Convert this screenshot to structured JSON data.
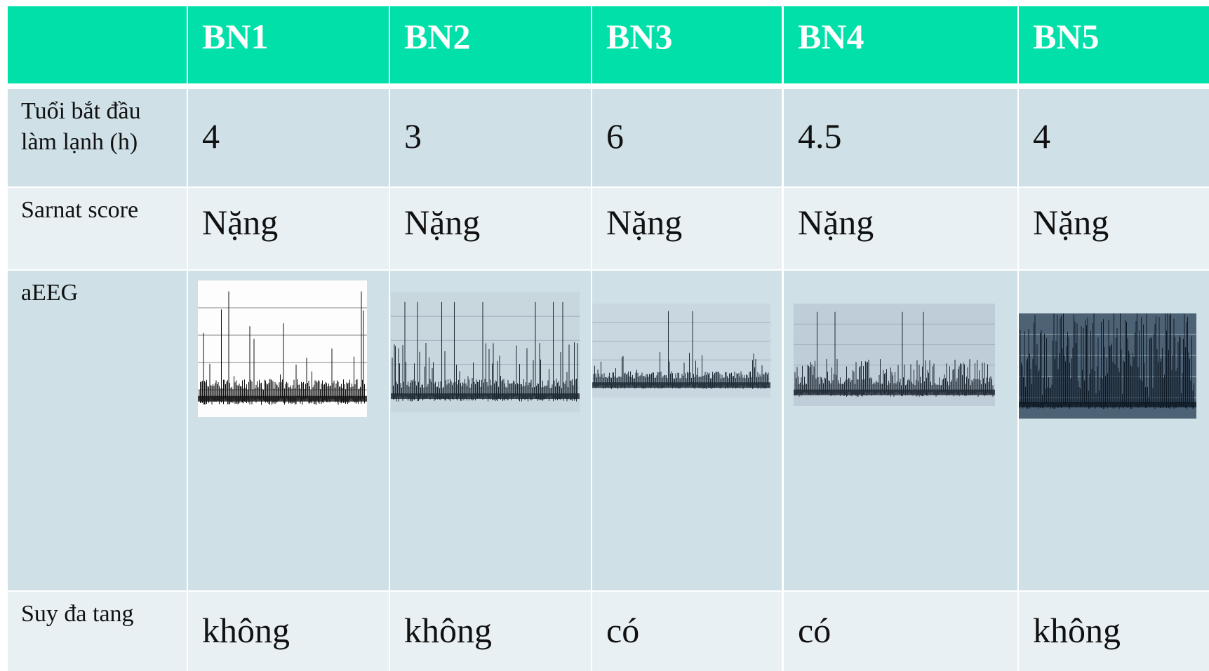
{
  "table": {
    "columns": [
      "BN1",
      "BN2",
      "BN3",
      "BN4",
      "BN5"
    ],
    "rows": [
      {
        "label": "Tuổi bắt đầu làm lạnh (h)",
        "cells": [
          4,
          3,
          6,
          4.5,
          4
        ]
      },
      {
        "label": "Sarnat score",
        "cells": [
          "Nặng",
          "Nặng",
          "Nặng",
          "Nặng",
          "Nặng"
        ]
      },
      {
        "label": "aEEG"
      },
      {
        "label": "Suy đa tang",
        "cells": [
          "không",
          "không",
          "có",
          "có",
          "không"
        ]
      }
    ]
  }
}
